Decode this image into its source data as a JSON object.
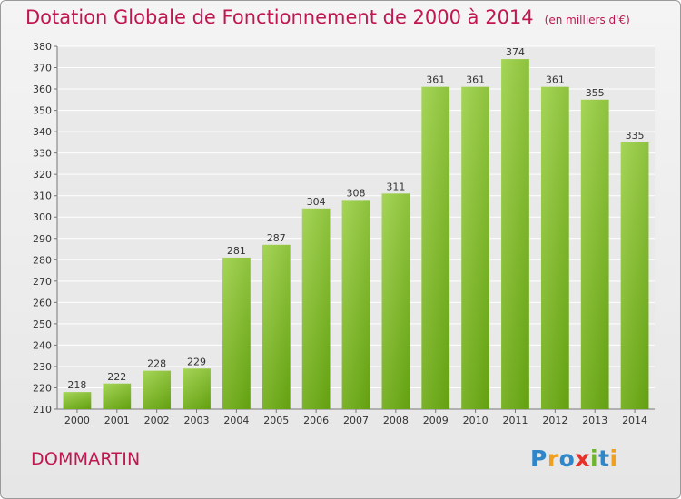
{
  "chart_data": {
    "type": "bar",
    "title": "Dotation Globale de Fonctionnement de 2000 à 2014",
    "unit": "(en milliers d'€)",
    "categories": [
      "2000",
      "2001",
      "2002",
      "2003",
      "2004",
      "2005",
      "2006",
      "2007",
      "2008",
      "2009",
      "2010",
      "2011",
      "2012",
      "2013",
      "2014"
    ],
    "values": [
      218,
      222,
      228,
      229,
      281,
      287,
      304,
      308,
      311,
      361,
      361,
      374,
      361,
      355,
      335
    ],
    "ylim": [
      210,
      380
    ],
    "ytick_step": 10,
    "xlabel": "",
    "ylabel": "",
    "grid": true,
    "colors": {
      "bar_light": "#a9d65a",
      "bar_dark": "#64a011",
      "title": "#c0174f"
    }
  },
  "commune": "DOMMARTIN",
  "logo": {
    "text": "Proxiti",
    "letters": [
      "P",
      "r",
      "o",
      "x",
      "i",
      "t",
      "i"
    ],
    "colors": [
      "#2f86c9",
      "#f0a020",
      "#2f86c9",
      "#e8302a",
      "#6cb52d",
      "#2f86c9",
      "#f0a020"
    ]
  }
}
